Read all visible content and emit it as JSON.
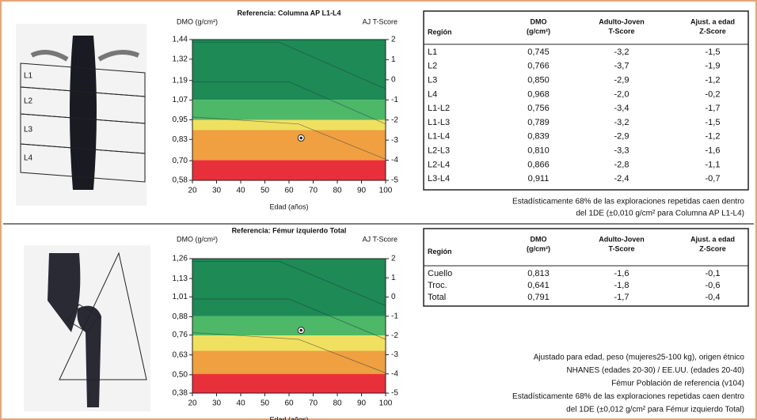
{
  "spine": {
    "image_labels": [
      "L1",
      "L2",
      "L3",
      "L4"
    ],
    "chart": {
      "title": "Referencia: Columna AP L1-L4",
      "ylabel": "DMO (g/cm²)",
      "y2label": "AJ T-Score",
      "xlabel": "Edad (años)",
      "xlim": [
        20,
        100
      ],
      "xticks": [
        20,
        30,
        40,
        50,
        60,
        70,
        80,
        90,
        100
      ],
      "ylim": [
        0.58,
        1.44
      ],
      "yticks": [
        {
          "value": 1.44,
          "label": "1,44"
        },
        {
          "value": 1.32,
          "label": "1,32"
        },
        {
          "value": 1.19,
          "label": "1,19"
        },
        {
          "value": 1.07,
          "label": "1,07"
        },
        {
          "value": 0.95,
          "label": "0,95"
        },
        {
          "value": 0.83,
          "label": "0,83"
        },
        {
          "value": 0.7,
          "label": "0,70"
        },
        {
          "value": 0.58,
          "label": "0,58"
        }
      ],
      "y2lim": [
        -5,
        2
      ],
      "y2ticks": [
        2,
        1,
        0,
        -1,
        -2,
        -3,
        -4,
        -5
      ],
      "bands": [
        {
          "from": -1,
          "to": 2,
          "color": "#1e8a55"
        },
        {
          "from": -2,
          "to": -1,
          "color": "#4cb868"
        },
        {
          "from": -2.5,
          "to": -2,
          "color": "#f0e060"
        },
        {
          "from": -4,
          "to": -2.5,
          "color": "#f0a040"
        },
        {
          "from": -5,
          "to": -4,
          "color": "#e8303a"
        }
      ],
      "point": {
        "x": 65,
        "y": 0.839
      }
    },
    "table": {
      "headers": [
        [
          "Región"
        ],
        [
          "DMO",
          "(g/cm²)"
        ],
        [
          "Adulto-Joven",
          "T-Score"
        ],
        [
          "Ajust. a edad",
          "Z-Score"
        ]
      ],
      "rows": [
        [
          "L1",
          "0,745",
          "-3,2",
          "-1,5"
        ],
        [
          "L2",
          "0,766",
          "-3,7",
          "-1,9"
        ],
        [
          "L3",
          "0,850",
          "-2,9",
          "-1,2"
        ],
        [
          "L4",
          "0,968",
          "-2,0",
          "-0,2"
        ],
        [
          "L1-L2",
          "0,756",
          "-3,4",
          "-1,7"
        ],
        [
          "L1-L3",
          "0,789",
          "-3,2",
          "-1,5"
        ],
        [
          "L1-L4",
          "0,839",
          "-2,9",
          "-1,2"
        ],
        [
          "L2-L3",
          "0,810",
          "-3,3",
          "-1,6"
        ],
        [
          "L2-L4",
          "0,866",
          "-2,8",
          "-1,1"
        ],
        [
          "L3-L4",
          "0,911",
          "-2,4",
          "-0,7"
        ]
      ]
    },
    "notes": [
      "Estadísticamente 68% de las exploraciones repetidas caen dentro",
      "del 1DE (±0,010 g/cm² para Columna AP L1-L4)"
    ]
  },
  "hip": {
    "chart": {
      "title": "Referencia: Fémur izquierdo Total",
      "ylabel": "DMO (g/cm²)",
      "y2label": "AJ T-Score",
      "xlabel": "Edad (años)",
      "xlim": [
        20,
        100
      ],
      "xticks": [
        20,
        30,
        40,
        50,
        60,
        70,
        80,
        90,
        100
      ],
      "ylim": [
        0.38,
        1.26
      ],
      "yticks": [
        {
          "value": 1.26,
          "label": "1,26"
        },
        {
          "value": 1.13,
          "label": "1,13"
        },
        {
          "value": 1.01,
          "label": "1,01"
        },
        {
          "value": 0.88,
          "label": "0,88"
        },
        {
          "value": 0.76,
          "label": "0,76"
        },
        {
          "value": 0.63,
          "label": "0,63"
        },
        {
          "value": 0.5,
          "label": "0,50"
        },
        {
          "value": 0.38,
          "label": "0,38"
        }
      ],
      "y2lim": [
        -5,
        2
      ],
      "y2ticks": [
        2,
        1,
        0,
        -1,
        -2,
        -3,
        -4,
        -5
      ],
      "bands": [
        {
          "from": -1,
          "to": 2,
          "color": "#1e8a55"
        },
        {
          "from": -2,
          "to": -1,
          "color": "#4cb868"
        },
        {
          "from": -2.8,
          "to": -2,
          "color": "#f0e060"
        },
        {
          "from": -4,
          "to": -2.8,
          "color": "#f0a040"
        },
        {
          "from": -5,
          "to": -4,
          "color": "#e8303a"
        }
      ],
      "point": {
        "x": 65,
        "y": 0.791
      }
    },
    "table": {
      "headers": [
        [
          "Región"
        ],
        [
          "DMO",
          "(g/cm²)"
        ],
        [
          "Adulto-Joven",
          "T-Score"
        ],
        [
          "Ajust. a edad",
          "Z-Score"
        ]
      ],
      "rows": [
        [
          "Cuello",
          "0,813",
          "-1,6",
          "-0,1"
        ],
        [
          "Troc.",
          "0,641",
          "-1,8",
          "-0,6"
        ],
        [
          "Total",
          "0,791",
          "-1,7",
          "-0,4"
        ]
      ]
    },
    "notes": [
      "Ajustado para edad, peso (mujeres25-100 kg), origen étnico",
      "NHANES (edades 20-30) / EE.UU. (edades 20-40)",
      "Fémur Población de referencia (v104)",
      "Estadísticamente 68% de las exploraciones repetidas caen dentro",
      "del 1DE (±0,012 g/cm² para Fémur izquierdo Total)"
    ]
  }
}
